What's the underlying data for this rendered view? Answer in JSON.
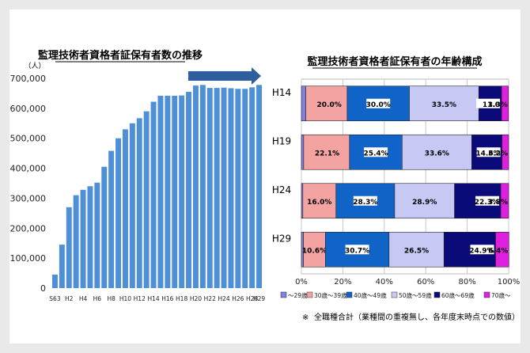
{
  "left_chart": {
    "title": "監理技術者資格者証保有者数の推移",
    "unit": "（人）",
    "chart_data": {
      "type": "bar",
      "title": "監理技術者資格者証保有者数の推移",
      "ylabel": "（人）",
      "ylim": [
        0,
        700000
      ],
      "yticks": [
        0,
        100000,
        200000,
        300000,
        400000,
        500000,
        600000,
        700000
      ],
      "ytick_labels": [
        "0",
        "100,000",
        "200,000",
        "300,000",
        "400,000",
        "500,000",
        "600,000",
        "700,000"
      ],
      "categories": [
        "S63",
        "H1",
        "H2",
        "H3",
        "H4",
        "H5",
        "H6",
        "H7",
        "H8",
        "H9",
        "H10",
        "H11",
        "H12",
        "H13",
        "H14",
        "H15",
        "H16",
        "H17",
        "H18",
        "H19",
        "H20",
        "H21",
        "H22",
        "H23",
        "H24",
        "H25",
        "H26",
        "H27",
        "H28",
        "H29"
      ],
      "visible_category_labels": [
        "S63",
        "",
        "H2",
        "",
        "H4",
        "",
        "H6",
        "",
        "H8",
        "",
        "H10",
        "",
        "H12",
        "",
        "H14",
        "",
        "H16",
        "",
        "H18",
        "",
        "H20",
        "",
        "H22",
        "",
        "H24",
        "",
        "H26",
        "",
        "H28",
        "H29"
      ],
      "values": [
        45000,
        145000,
        270000,
        310000,
        328000,
        340000,
        352000,
        405000,
        458000,
        500000,
        530000,
        550000,
        567000,
        590000,
        622000,
        642000,
        642000,
        642000,
        643000,
        655000,
        676000,
        678000,
        668000,
        668000,
        669000,
        667000,
        665000,
        665000,
        670000,
        678000
      ],
      "color": "#4f8fd6",
      "grid": false,
      "arrow_color": "#2e5e9e"
    }
  },
  "right_chart": {
    "title": "監理技術者資格者証保有者の年齢構成",
    "chart_data": {
      "type": "bar",
      "orientation": "horizontal",
      "stacked": true,
      "title": "監理技術者資格者証保有者の年齢構成",
      "categories": [
        "H14",
        "H19",
        "H24",
        "H29"
      ],
      "xlim": [
        0,
        100
      ],
      "xticks": [
        0,
        20,
        40,
        60,
        80,
        100
      ],
      "xtick_labels": [
        "0%",
        "20%",
        "40%",
        "60%",
        "80%",
        "100%"
      ],
      "grid": true,
      "legend_position": "bottom",
      "series": [
        {
          "name": "～29歳",
          "color": "#8080e0",
          "values": [
            2.1,
            1.1,
            0.7,
            1.0
          ],
          "labels": [
            "2.1%",
            "1.1%",
            "0.7%",
            "1.0%"
          ]
        },
        {
          "name": "30歳～39歳",
          "color": "#f4a3a3",
          "values": [
            20.0,
            22.1,
            16.0,
            10.6
          ],
          "labels": [
            "20.0%",
            "22.1%",
            "16.0%",
            "10.6%"
          ]
        },
        {
          "name": "40歳～49歳",
          "color": "#1064c8",
          "values": [
            30.0,
            25.4,
            28.3,
            30.7
          ],
          "labels": [
            "30.0%",
            "25.4%",
            "28.3%",
            "30.7%"
          ]
        },
        {
          "name": "50歳～59歳",
          "color": "#c8c8f4",
          "values": [
            33.5,
            33.6,
            28.9,
            26.5
          ],
          "labels": [
            "33.5%",
            "33.6%",
            "28.9%",
            "26.5%"
          ]
        },
        {
          "name": "60歳～69歳",
          "color": "#0a0a78",
          "values": [
            11.0,
            14.6,
            22.3,
            24.9
          ],
          "labels": [
            "11.0",
            "14.6%",
            "22.3%",
            "24.9%"
          ]
        },
        {
          "name": "70歳～",
          "color": "#e020e0",
          "values": [
            3.3,
            3.2,
            3.8,
            6.4
          ],
          "labels": [
            "3.3%",
            "3.2%",
            "3.8%",
            "6.4%"
          ]
        }
      ]
    },
    "footnote_mark": "※",
    "footnote": "全職種合計（業種間の重複無し、各年度末時点での数値）"
  }
}
